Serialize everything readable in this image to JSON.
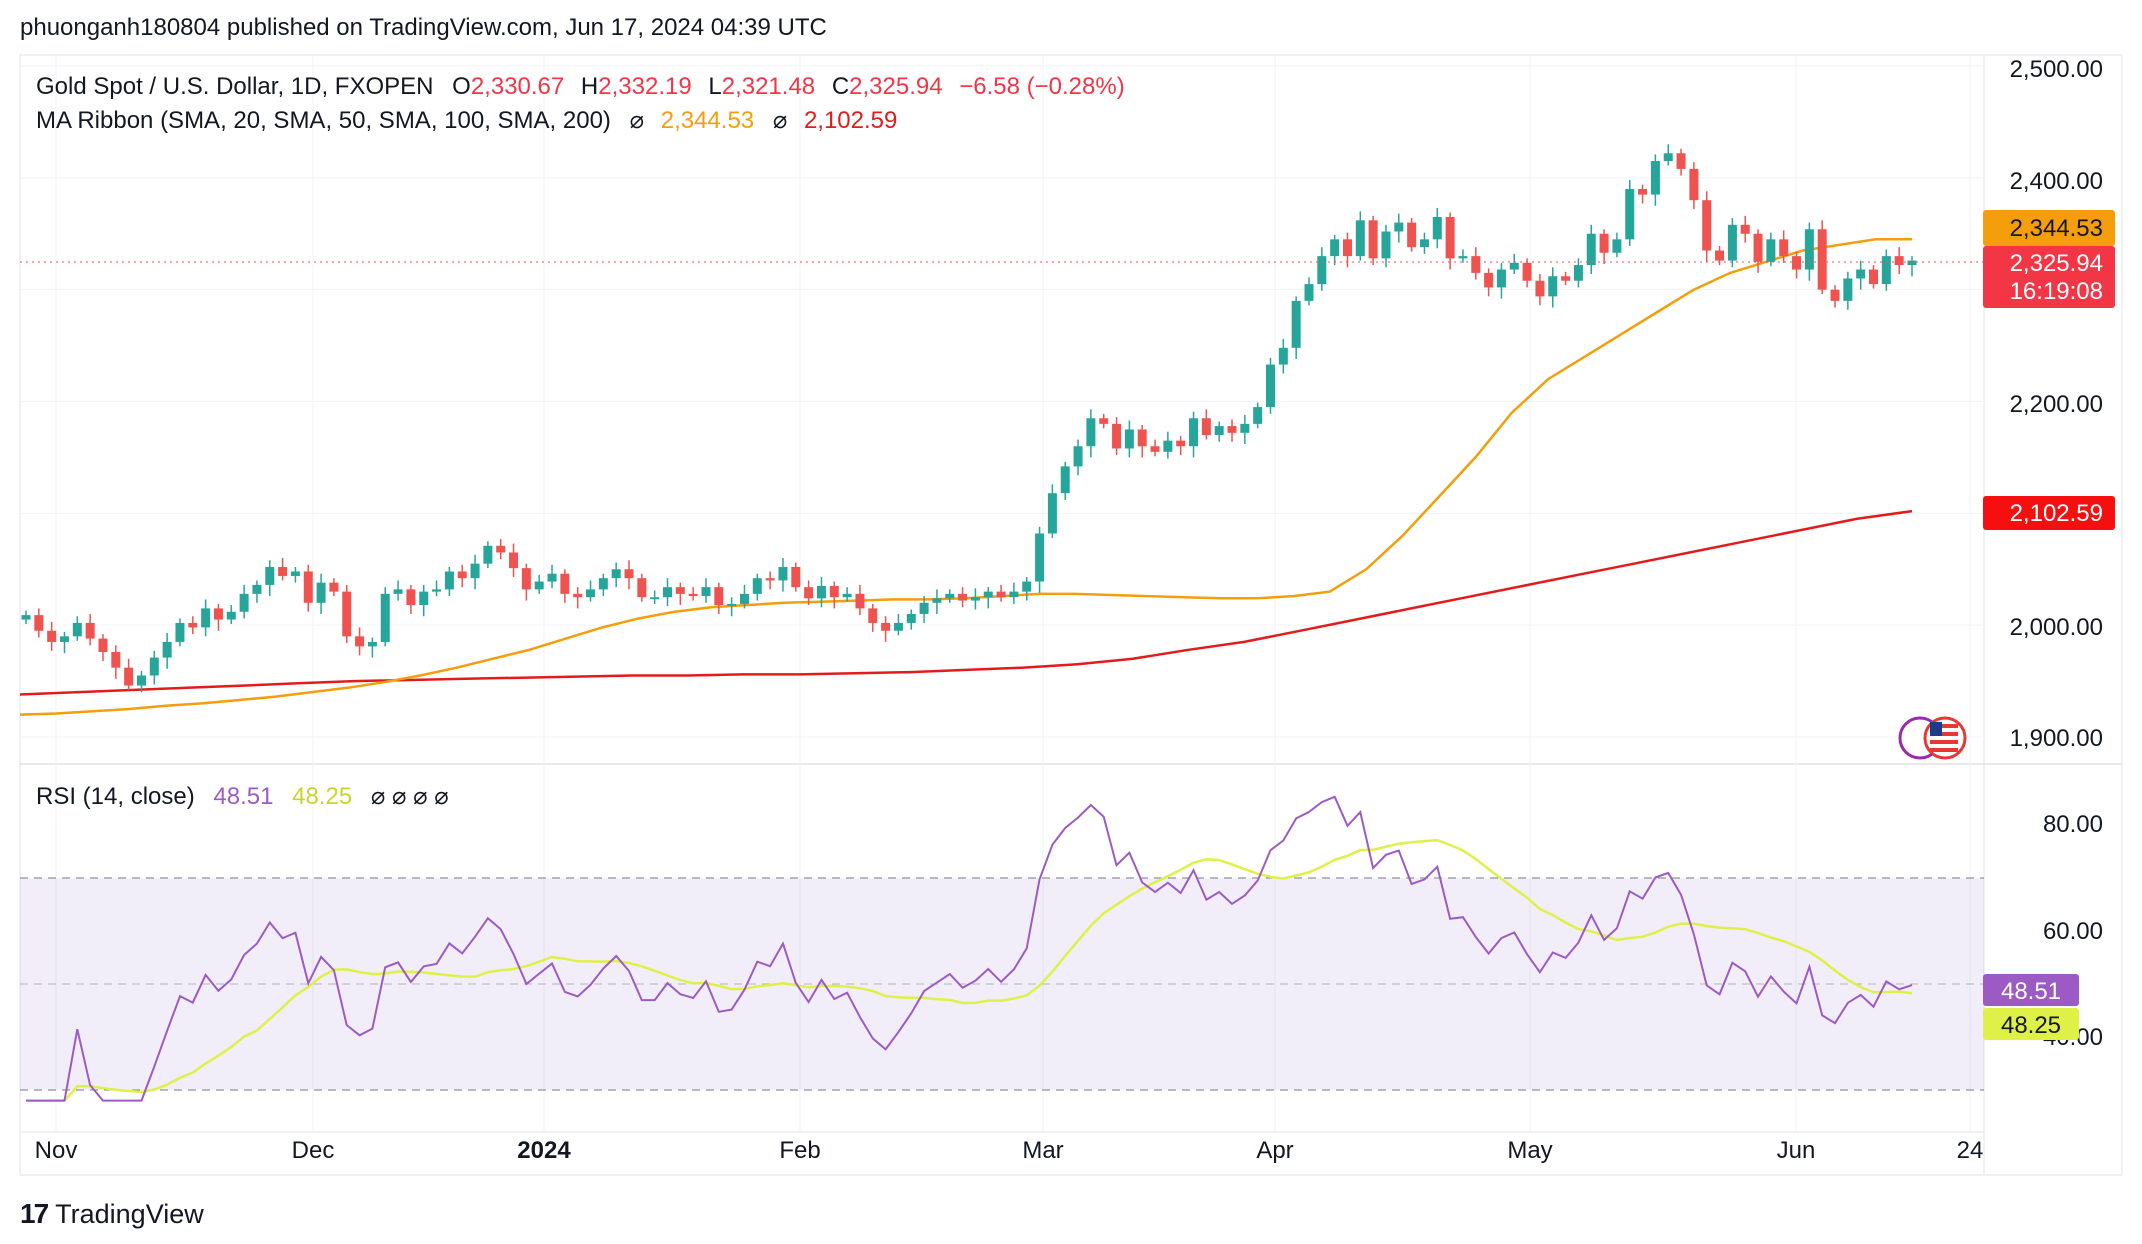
{
  "header": {
    "published": "phuonganh180804 published on TradingView.com, Jun 17, 2024 04:39 UTC"
  },
  "legend": {
    "symbol": "Gold Spot / U.S. Dollar, 1D, FXOPEN",
    "o_label": "O",
    "o": "2,330.67",
    "h_label": "H",
    "h": "2,332.19",
    "l_label": "L",
    "l": "2,321.48",
    "c_label": "C",
    "c": "2,325.94",
    "change": "−6.58 (−0.28%)",
    "ma_label": "MA Ribbon (SMA, 20, SMA, 50, SMA, 100, SMA, 200)",
    "ma_icon": "⌀",
    "ma_v1": "2,344.53",
    "ma_v2": "2,102.59"
  },
  "rsi_legend": {
    "label": "RSI (14, close)",
    "v1": "48.51",
    "v2": "48.25",
    "icons": "⌀ ⌀ ⌀ ⌀"
  },
  "footer": {
    "brand": "TradingView",
    "logo": "17"
  },
  "colors": {
    "up": "#26a69a",
    "down": "#ef5350",
    "ma_orange": "#f59e0b",
    "ma_red": "#e31b1b",
    "rsi": "#9c5bc4",
    "rsi_ma": "#dff046",
    "band": "#7e57c2"
  },
  "chart_data": {
    "type": "candlestick",
    "title": "Gold Spot / U.S. Dollar, 1D, FXOPEN",
    "price_axis": {
      "ticks": [
        "2,500.00",
        "2,400.00",
        "2,200.00",
        "2,000.00",
        "1,900.00"
      ],
      "tick_values": [
        2500,
        2400,
        2200,
        2000,
        1900
      ]
    },
    "x_axis": {
      "ticks": [
        "Nov",
        "Dec",
        "2024",
        "Feb",
        "Mar",
        "Apr",
        "May",
        "Jun",
        "24"
      ]
    },
    "price_labels": {
      "ma50": "2,344.53",
      "last": "2,325.94",
      "countdown": "16:19:08",
      "ma200": "2,102.59"
    },
    "closes": [
      2009,
      1995,
      1985,
      1990,
      2002,
      1988,
      1976,
      1962,
      1946,
      1955,
      1971,
      1985,
      2002,
      1998,
      2015,
      2005,
      2012,
      2028,
      2036,
      2052,
      2044,
      2048,
      2020,
      2038,
      2030,
      1990,
      1981,
      1985,
      2028,
      2032,
      2018,
      2030,
      2032,
      2048,
      2042,
      2055,
      2071,
      2065,
      2051,
      2032,
      2039,
      2046,
      2028,
      2025,
      2032,
      2042,
      2050,
      2042,
      2025,
      2025,
      2034,
      2028,
      2026,
      2034,
      2018,
      2019,
      2028,
      2042,
      2040,
      2052,
      2034,
      2024,
      2035,
      2025,
      2028,
      2015,
      2002,
      1995,
      2002,
      2010,
      2020,
      2024,
      2028,
      2022,
      2025,
      2030,
      2025,
      2030,
      2039,
      2082,
      2118,
      2142,
      2160,
      2185,
      2180,
      2158,
      2175,
      2160,
      2155,
      2165,
      2160,
      2185,
      2170,
      2178,
      2172,
      2180,
      2195,
      2233,
      2248,
      2290,
      2305,
      2330,
      2345,
      2330,
      2362,
      2328,
      2352,
      2360,
      2338,
      2345,
      2365,
      2328,
      2330,
      2315,
      2302,
      2318,
      2324,
      2308,
      2294,
      2312,
      2308,
      2322,
      2350,
      2333,
      2345,
      2390,
      2385,
      2415,
      2422,
      2408,
      2380,
      2335,
      2326,
      2358,
      2350,
      2325,
      2345,
      2330,
      2318,
      2354,
      2300,
      2290,
      2310,
      2318,
      2305,
      2330,
      2322,
      2326
    ],
    "ma50": [
      1920,
      1921,
      1923,
      1925,
      1928,
      1930,
      1933,
      1936,
      1940,
      1944,
      1949,
      1955,
      1962,
      1970,
      1978,
      1988,
      1998,
      2006,
      2012,
      2016,
      2018,
      2020,
      2021,
      2022,
      2023,
      2023,
      2024,
      2026,
      2028,
      2028,
      2027,
      2026,
      2025,
      2024,
      2024,
      2026,
      2030,
      2050,
      2080,
      2115,
      2150,
      2190,
      2220,
      2240,
      2260,
      2280,
      2300,
      2315,
      2325,
      2335,
      2340,
      2345,
      2345
    ],
    "sma200": [
      1938,
      1940,
      1942,
      1944,
      1946,
      1948,
      1950,
      1951,
      1952,
      1953,
      1954,
      1955,
      1955,
      1956,
      1956,
      1957,
      1958,
      1960,
      1962,
      1965,
      1970,
      1978,
      1985,
      1995,
      2005,
      2015,
      2025,
      2035,
      2045,
      2055,
      2065,
      2075,
      2085,
      2095,
      2102
    ],
    "rsi": {
      "label": "RSI (14, close)",
      "ticks": [
        "80.00",
        "60.00",
        "40.00"
      ],
      "bands": [
        70,
        30
      ],
      "mid": 50,
      "last": "48.51",
      "ma_last": "48.25"
    }
  }
}
